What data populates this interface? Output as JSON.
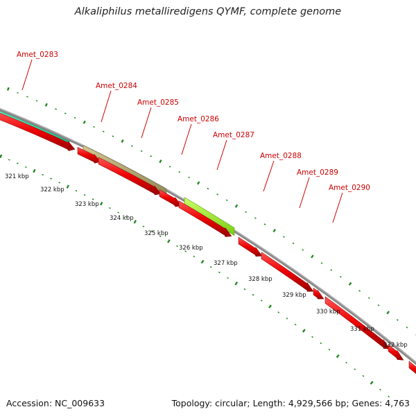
{
  "title": "Alkaliphilus metalliredigens QYMF, complete genome",
  "footer": {
    "accession": "Accession: NC_009633",
    "summary": "Topology: circular; Length: 4,929,566 bp; Genes: 4,763"
  },
  "genes": [
    "Amet_0283",
    "Amet_0284",
    "Amet_0285",
    "Amet_0286",
    "Amet_0287",
    "Amet_0288",
    "Amet_0289",
    "Amet_0290"
  ],
  "kbp_ticks": [
    "321 kbp",
    "322 kbp",
    "323 kbp",
    "324 kbp",
    "325 kbp",
    "326 kbp",
    "327 kbp",
    "328 kbp",
    "329 kbp",
    "330 kbp",
    "331 kbp",
    "332 kbp"
  ],
  "colors": {
    "cds": "#ee0000",
    "feature_teal": "#22ddaa",
    "feature_khaki": "#b5aa70",
    "feature_lime": "#99ee22",
    "tick": "#228822",
    "backbone": "#888888",
    "label": "#cc0000"
  }
}
